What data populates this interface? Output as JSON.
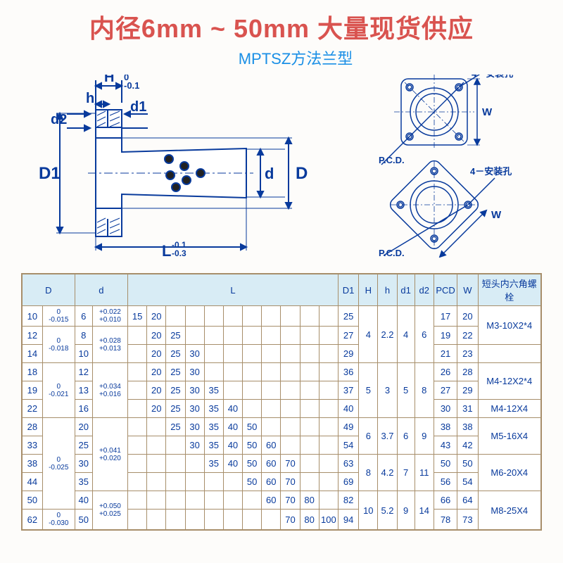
{
  "header": {
    "title": "内径6mm ~ 50mm 大量现货供应",
    "subtitle": "MPTSZ方法兰型"
  },
  "diagram": {
    "labels": {
      "H": "H",
      "H_tol_top": "0",
      "H_tol_bot": "-0.1",
      "h": "h",
      "d2": "d2",
      "d1": "d1",
      "D1": "D1",
      "d": "d",
      "D": "D",
      "L": "L",
      "L_tol_top": "-0.1",
      "L_tol_bot": "-0.3",
      "pcd": "P.C.D.",
      "W": "W",
      "install_hole": "4－安装孔"
    },
    "line_color": "#083a9c",
    "fill_color": "#ffffff",
    "dot_color": "#222"
  },
  "table": {
    "headers": {
      "D": "D",
      "d": "d",
      "L": "L",
      "D1": "D1",
      "H": "H",
      "h": "h",
      "d1": "d1",
      "d2": "d2",
      "PCD": "PCD",
      "W": "W",
      "bolt": "短头内六角螺栓"
    },
    "tolerances": {
      "D10": "0\n-0.015",
      "D12_14": "0\n-0.018",
      "D18_22": "0\n-0.021",
      "D28_50": "0\n-0.025",
      "D62": "0\n-0.030",
      "d6": "+0.022\n+0.010",
      "d8_10": "+0.028\n+0.013",
      "d12_16": "+0.034\n+0.016",
      "d20_35": "+0.041\n+0.020",
      "d40_50": "+0.050\n+0.025"
    },
    "rows": [
      {
        "D": "10",
        "d": "6",
        "L": [
          "15",
          "20",
          "",
          "",
          "",
          "",
          "",
          ""
        ],
        "D1": "25",
        "H": "4",
        "h": "2.2",
        "d1": "4",
        "d2": "6",
        "PCD": "17",
        "W": "20",
        "bolt": "M3-10X2*4"
      },
      {
        "D": "12",
        "d": "8",
        "L": [
          "",
          "20",
          "25",
          "",
          "",
          "",
          "",
          ""
        ],
        "D1": "27",
        "H": "4",
        "h": "2.2",
        "d1": "4",
        "d2": "6",
        "PCD": "19",
        "W": "22",
        "bolt": "M3-10X2*4"
      },
      {
        "D": "14",
        "d": "10",
        "L": [
          "",
          "20",
          "25",
          "30",
          "",
          "",
          "",
          ""
        ],
        "D1": "29",
        "H": "4",
        "h": "2.2",
        "d1": "4",
        "d2": "6",
        "PCD": "21",
        "W": "23",
        "bolt": ""
      },
      {
        "D": "18",
        "d": "12",
        "L": [
          "",
          "20",
          "25",
          "30",
          "",
          "",
          "",
          ""
        ],
        "D1": "36",
        "H": "5",
        "h": "3",
        "d1": "5",
        "d2": "8",
        "PCD": "26",
        "W": "28",
        "bolt": "M4-12X2*4"
      },
      {
        "D": "19",
        "d": "13",
        "L": [
          "",
          "20",
          "25",
          "30",
          "35",
          "",
          "",
          ""
        ],
        "D1": "37",
        "H": "5",
        "h": "3",
        "d1": "5",
        "d2": "8",
        "PCD": "27",
        "W": "29",
        "bolt": "M4-12X2*4"
      },
      {
        "D": "22",
        "d": "16",
        "L": [
          "",
          "20",
          "25",
          "30",
          "35",
          "40",
          "",
          ""
        ],
        "D1": "40",
        "H": "5",
        "h": "3",
        "d1": "5",
        "d2": "8",
        "PCD": "30",
        "W": "31",
        "bolt": "M4-12X4"
      },
      {
        "D": "28",
        "d": "20",
        "L": [
          "",
          "",
          "25",
          "30",
          "35",
          "40",
          "50",
          ""
        ],
        "D1": "49",
        "H": "6",
        "h": "3.7",
        "d1": "6",
        "d2": "9",
        "PCD": "38",
        "W": "38",
        "bolt": "M5-16X4"
      },
      {
        "D": "33",
        "d": "25",
        "L": [
          "",
          "",
          "",
          "30",
          "35",
          "40",
          "50",
          "60"
        ],
        "D1": "54",
        "H": "6",
        "h": "3.7",
        "d1": "6",
        "d2": "9",
        "PCD": "43",
        "W": "42",
        "bolt": "M5-16X4"
      },
      {
        "D": "38",
        "d": "30",
        "L": [
          "",
          "",
          "",
          "",
          "35",
          "40",
          "50",
          "60",
          "70"
        ],
        "D1": "63",
        "H": "8",
        "h": "4.2",
        "d1": "7",
        "d2": "11",
        "PCD": "50",
        "W": "50",
        "bolt": "M6-20X4"
      },
      {
        "D": "44",
        "d": "35",
        "L": [
          "",
          "",
          "",
          "",
          "",
          "",
          "50",
          "60",
          "70"
        ],
        "D1": "69",
        "H": "8",
        "h": "4.2",
        "d1": "7",
        "d2": "11",
        "PCD": "56",
        "W": "54",
        "bolt": "M6-20X4"
      },
      {
        "D": "50",
        "d": "40",
        "L": [
          "",
          "",
          "",
          "",
          "",
          "",
          "",
          "60",
          "70",
          "80"
        ],
        "D1": "82",
        "H": "10",
        "h": "5.2",
        "d1": "9",
        "d2": "14",
        "PCD": "66",
        "W": "64",
        "bolt": "M8-25X4"
      },
      {
        "D": "62",
        "d": "50",
        "L": [
          "",
          "",
          "",
          "",
          "",
          "",
          "",
          "",
          "70",
          "80",
          "100"
        ],
        "D1": "94",
        "H": "10",
        "h": "5.2",
        "d1": "9",
        "d2": "14",
        "PCD": "78",
        "W": "73",
        "bolt": "M8-25X4"
      }
    ]
  }
}
